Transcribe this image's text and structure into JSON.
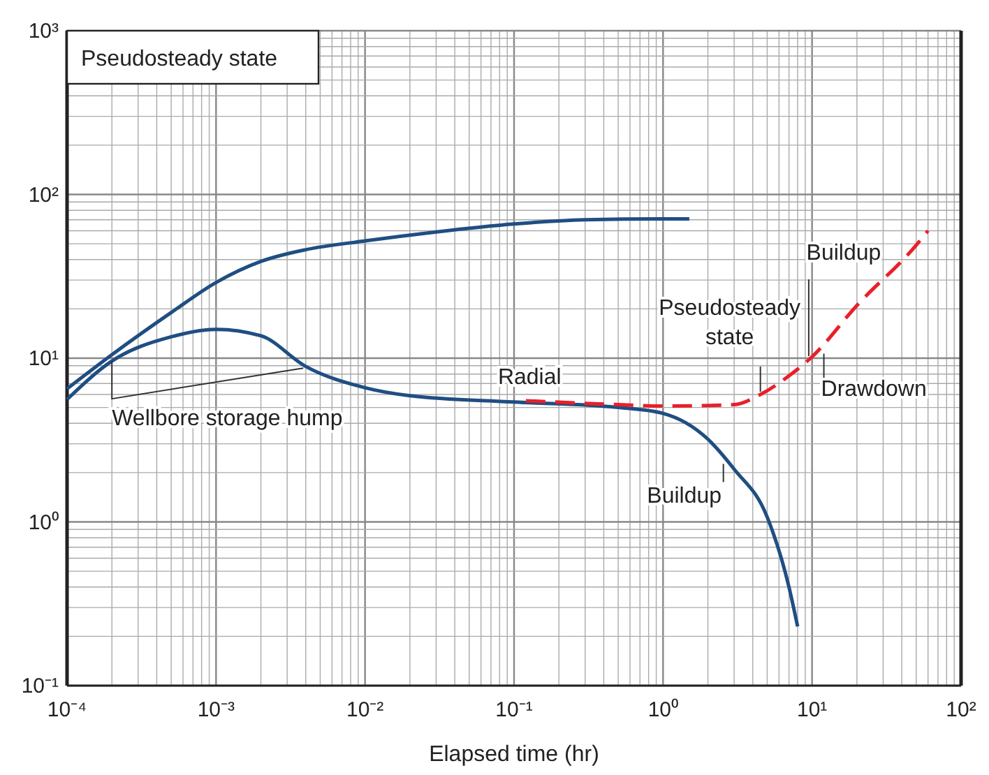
{
  "chart_data": {
    "type": "line",
    "xlabel": "Elapsed time (hr)",
    "log": "xy",
    "grid": true,
    "line_style": "solid",
    "marker": "none",
    "xlim": [
      0.0001,
      100
    ],
    "ylim": [
      0.1,
      1000
    ],
    "xticks": [
      {
        "value": 0.0001,
        "label": "10⁻⁴"
      },
      {
        "value": 0.001,
        "label": "10⁻³"
      },
      {
        "value": 0.01,
        "label": "10⁻²"
      },
      {
        "value": 0.1,
        "label": "10⁻¹"
      },
      {
        "value": 1,
        "label": "10⁰"
      },
      {
        "value": 10,
        "label": "10¹"
      },
      {
        "value": 100,
        "label": "10²"
      }
    ],
    "yticks": [
      {
        "value": 0.1,
        "label": "10⁻¹"
      },
      {
        "value": 1,
        "label": "10⁰"
      },
      {
        "value": 10,
        "label": "10¹"
      },
      {
        "value": 100,
        "label": "10²"
      },
      {
        "value": 1000,
        "label": "10³"
      }
    ],
    "series": [
      {
        "color": "#1f4e82",
        "x": [
          0.0001,
          0.0002,
          0.0005,
          0.001,
          0.002,
          0.004,
          0.01,
          0.03,
          0.1,
          0.3,
          1,
          1.5
        ],
        "values": [
          6.5,
          10.5,
          19,
          29,
          39,
          46,
          52,
          59,
          66,
          70,
          71,
          71
        ]
      },
      {
        "color": "#1f4e82",
        "x": [
          0.0001,
          0.0002,
          0.0005,
          0.001,
          0.002,
          0.004,
          0.01,
          0.02,
          0.1,
          0.5,
          1,
          2,
          3,
          5,
          7,
          8
        ],
        "values": [
          5.6,
          9.6,
          13.5,
          15,
          13.7,
          8.9,
          6.6,
          5.9,
          5.4,
          5,
          4.6,
          3.2,
          2.1,
          1.07,
          0.4,
          0.23
        ]
      },
      {
        "color": "#e8202a",
        "line_style": "dashed",
        "x": [
          0.12,
          0.5,
          1,
          3,
          4.5,
          7,
          10,
          20,
          50,
          60
        ],
        "values": [
          5.5,
          5.2,
          5.1,
          5.2,
          6,
          7.8,
          10.2,
          21,
          49,
          60
        ]
      }
    ],
    "annotations": [
      "Pseudosteady state",
      {
        "text": "Wellbore storage hump",
        "x": 0.0002,
        "y": 9.6
      },
      {
        "text": "Radial",
        "x": 0.12,
        "y": 5.5
      },
      {
        "text": "Pseudosteady state",
        "x": 4.5,
        "y": 6
      },
      {
        "text": "Buildup",
        "x": 9.5,
        "y": 9.7
      },
      {
        "text": "Drawdown",
        "x": 12,
        "y": 11.3
      },
      {
        "text": "Buildup",
        "x": 2.54,
        "y": 2.35
      }
    ]
  }
}
